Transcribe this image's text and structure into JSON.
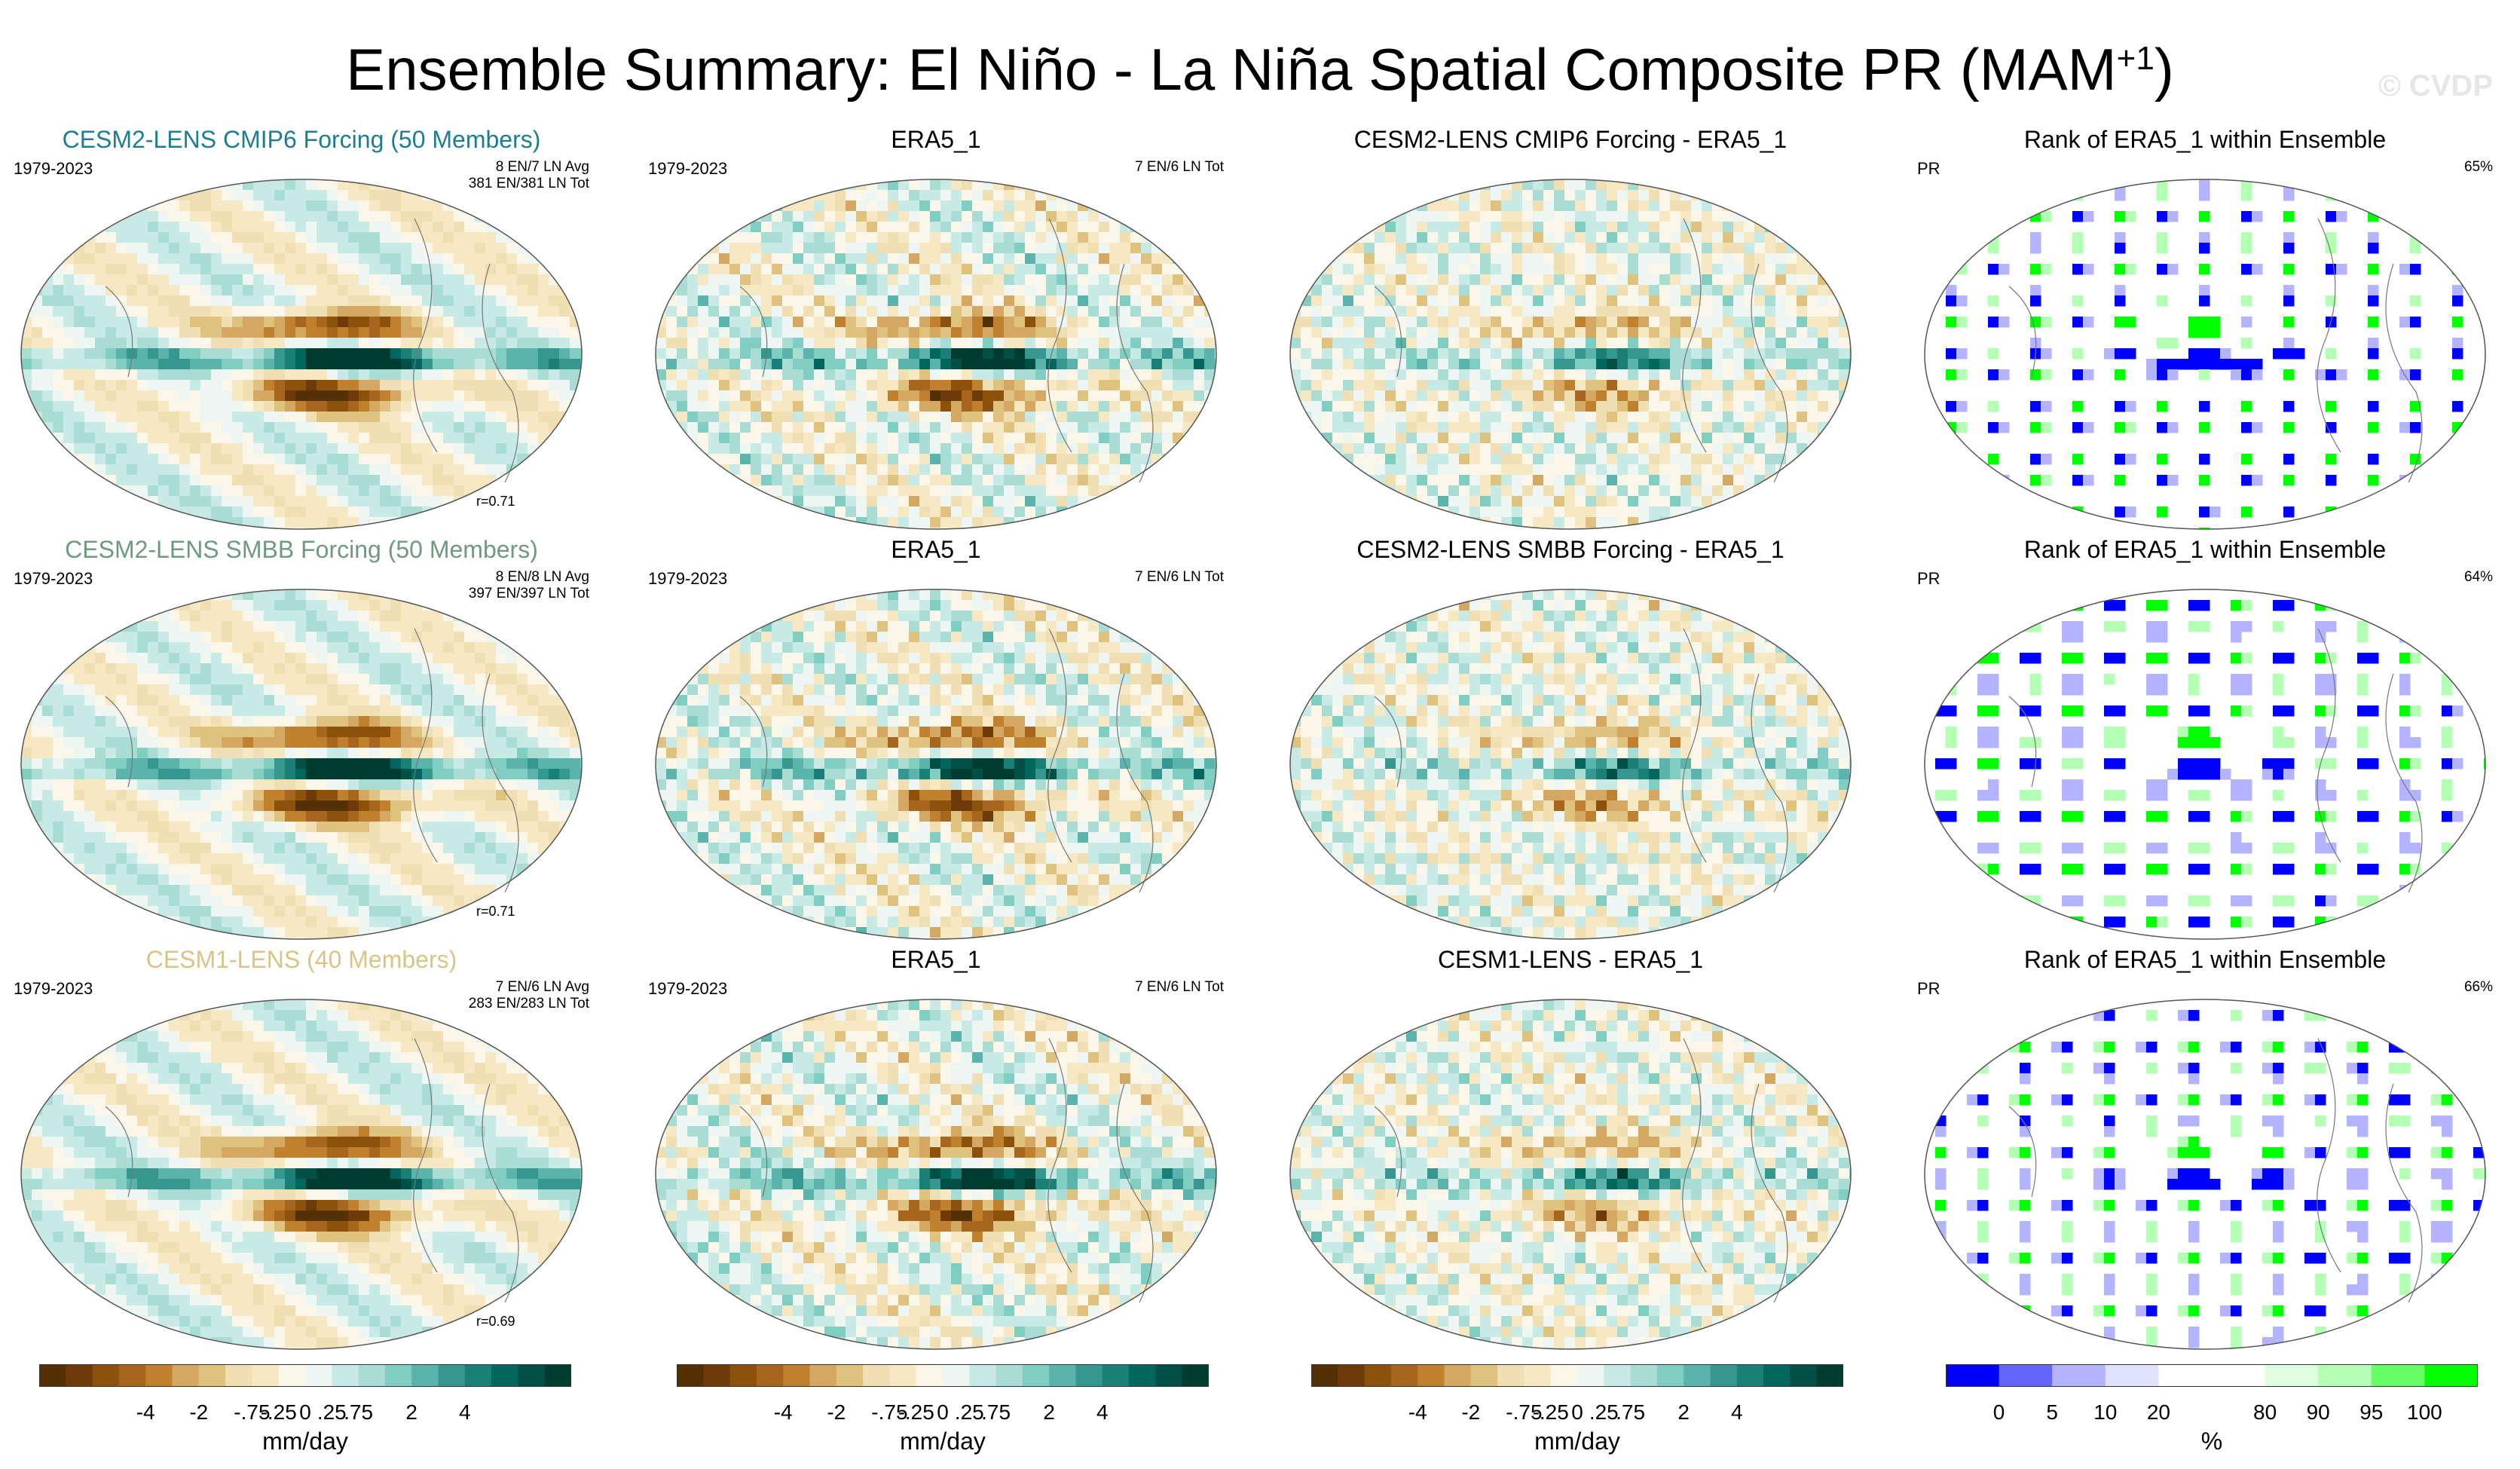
{
  "title_main": "Ensemble Summary: El Niño - La Niña Spatial Composite PR (MAM",
  "title_sup": "+1",
  "title_close": ")",
  "watermark": "© CVDP",
  "colors": {
    "diverging": [
      "#543005",
      "#6e3b08",
      "#8c510a",
      "#a6661d",
      "#bf812d",
      "#d4a862",
      "#dfc27d",
      "#f0dfb2",
      "#f6e8c3",
      "#fbf6ea",
      "#eef6f4",
      "#c7eae5",
      "#a9ddd4",
      "#80cdc1",
      "#5ab4ac",
      "#35978f",
      "#1a7f76",
      "#01665e",
      "#014f45",
      "#003c30"
    ],
    "rank": [
      "#0000ff",
      "#6666ff",
      "#b3b3ff",
      "#e0e0ff",
      "#ffffff",
      "#ffffff",
      "#e0ffe0",
      "#b3ffb3",
      "#66ff66",
      "#00ff00"
    ],
    "title_teal": "#1f7e8e",
    "title_sage": "#6f9a7e",
    "title_tan": "#d8c586"
  },
  "rows": [
    {
      "col1": {
        "title": "CESM2-LENS CMIP6 Forcing (50 Members)",
        "period": "1979-2023",
        "right1": "8 EN/7 LN Avg",
        "right2": "381 EN/381 LN Tot",
        "corr": "r=0.71"
      },
      "col2": {
        "title": "ERA5_1",
        "period": "1979-2023",
        "right": "7 EN/6 LN Tot"
      },
      "col3": {
        "title": "CESM2-LENS CMIP6 Forcing - ERA5_1"
      },
      "col4": {
        "title": "Rank of ERA5_1 within Ensemble",
        "var": "PR",
        "pct": "65%"
      }
    },
    {
      "col1": {
        "title": "CESM2-LENS SMBB Forcing (50 Members)",
        "period": "1979-2023",
        "right1": "8 EN/8 LN Avg",
        "right2": "397 EN/397 LN Tot",
        "corr": "r=0.71"
      },
      "col2": {
        "title": "ERA5_1",
        "period": "1979-2023",
        "right": "7 EN/6 LN Tot"
      },
      "col3": {
        "title": "CESM2-LENS SMBB Forcing - ERA5_1"
      },
      "col4": {
        "title": "Rank of ERA5_1 within Ensemble",
        "var": "PR",
        "pct": "64%"
      }
    },
    {
      "col1": {
        "title": "CESM1-LENS (40 Members)",
        "period": "1979-2023",
        "right1": "7 EN/6 LN Avg",
        "right2": "283 EN/283 LN Tot",
        "corr": "r=0.69"
      },
      "col2": {
        "title": "ERA5_1",
        "period": "1979-2023",
        "right": "7 EN/6 LN Tot"
      },
      "col3": {
        "title": "CESM1-LENS - ERA5_1"
      },
      "col4": {
        "title": "Rank of ERA5_1 within Ensemble",
        "var": "PR",
        "pct": "66%"
      }
    }
  ],
  "colorbars": {
    "diverging_ticks": [
      "-4",
      "-2",
      "-.75",
      "-.25",
      "0",
      ".25",
      ".75",
      "2",
      "4"
    ],
    "diverging_unit": "mm/day",
    "rank_ticks": [
      "0",
      "5",
      "10",
      "20",
      "80",
      "90",
      "95",
      "100"
    ],
    "rank_unit": "%"
  },
  "chart_data": [
    {
      "type": "heatmap",
      "title": "CESM2-LENS CMIP6 Forcing (50 Members)",
      "subtitle": "El Niño - La Niña composite precipitation, MAM+1, 1979-2023",
      "units": "mm/day",
      "levels": [
        -4,
        -2,
        -0.75,
        -0.25,
        0,
        0.25,
        0.75,
        2,
        4
      ]
    },
    {
      "type": "heatmap",
      "title": "ERA5_1",
      "units": "mm/day"
    },
    {
      "type": "heatmap",
      "title": "CESM2-LENS CMIP6 Forcing - ERA5_1",
      "units": "mm/day"
    },
    {
      "type": "heatmap",
      "title": "Rank of ERA5_1 within Ensemble",
      "units": "%",
      "levels": [
        0,
        5,
        10,
        20,
        80,
        90,
        95,
        100
      ]
    },
    {
      "type": "heatmap",
      "title": "CESM2-LENS SMBB Forcing (50 Members)",
      "units": "mm/day"
    },
    {
      "type": "heatmap",
      "title": "CESM2-LENS SMBB Forcing - ERA5_1",
      "units": "mm/day"
    },
    {
      "type": "heatmap",
      "title": "CESM1-LENS (40 Members)",
      "units": "mm/day"
    },
    {
      "type": "heatmap",
      "title": "CESM1-LENS - ERA5_1",
      "units": "mm/day"
    }
  ]
}
